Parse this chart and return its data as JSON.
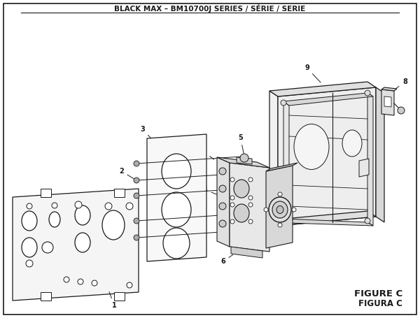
{
  "title": "BLACK MAX – BM10700J SERIES / SÉRIE / SERIE",
  "figure_label": "FIGURE C",
  "figura_label": "FIGURA C",
  "bg_color": "#ffffff",
  "border_color": "#000000",
  "line_color": "#1a1a1a",
  "title_fontsize": 7.5,
  "label_fontsize": 7.0,
  "figure_label_fontsize": 9.5
}
